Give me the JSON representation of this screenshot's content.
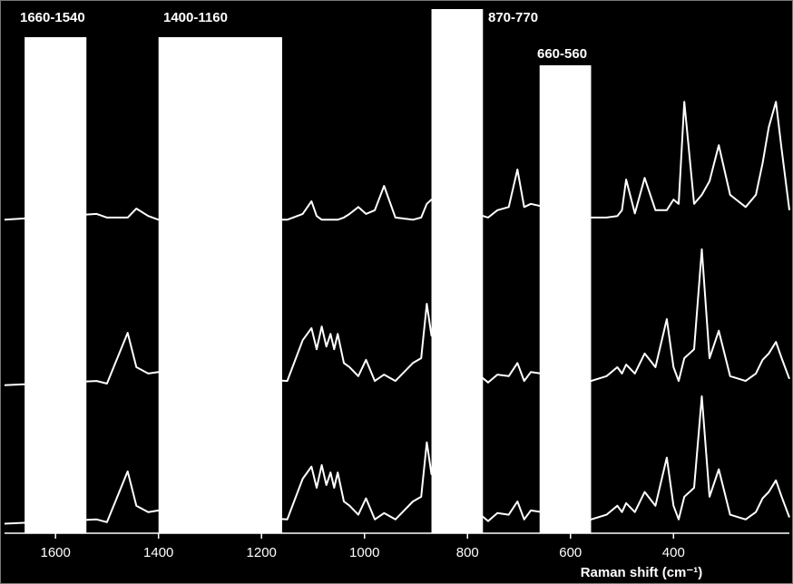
{
  "chart_data": {
    "type": "line",
    "xlabel": "Raman shift (cm⁻¹)",
    "xlim": [
      1699,
      175
    ],
    "xticks": [
      1600,
      1400,
      1200,
      1000,
      800,
      600,
      400
    ],
    "ylim": [
      0,
      100
    ],
    "x": [
      1699,
      1520,
      1500,
      1460,
      1443,
      1420,
      1400,
      1150,
      1120,
      1103,
      1093,
      1083,
      1074,
      1066,
      1059,
      1052,
      1040,
      1029,
      1012,
      997,
      980,
      962,
      940,
      906,
      890,
      879,
      870,
      760,
      742,
      720,
      703,
      690,
      677,
      560,
      530,
      509,
      500,
      492,
      475,
      456,
      435,
      413,
      400,
      390,
      379,
      360,
      345,
      330,
      312,
      290,
      260,
      240,
      227,
      215,
      201,
      190,
      175
    ],
    "series": [
      {
        "color": "#ffffff",
        "values": [
          59.3,
          60.4,
          59.7,
          59.7,
          61.4,
          60.0,
          59.3,
          59.3,
          60.4,
          62.8,
          60.0,
          59.3,
          59.3,
          59.3,
          59.3,
          59.3,
          59.7,
          60.4,
          61.7,
          60.4,
          61.1,
          65.7,
          59.7,
          59.3,
          59.7,
          62.3,
          63.1,
          59.7,
          61.1,
          61.7,
          68.8,
          61.7,
          62.3,
          59.7,
          59.7,
          60.0,
          61.1,
          66.9,
          60.5,
          67.2,
          61.1,
          61.1,
          63.1,
          62.3,
          81.6,
          62.3,
          64.0,
          66.6,
          73.4,
          64.0,
          61.7,
          64.0,
          70.0,
          76.8,
          81.6,
          72.6,
          61.1
        ]
      },
      {
        "color": "#ffffff",
        "values": [
          28.0,
          28.8,
          28.3,
          37.9,
          31.4,
          30.2,
          30.5,
          28.8,
          36.5,
          38.8,
          34.8,
          39.1,
          35.3,
          37.7,
          34.8,
          37.7,
          32.2,
          31.4,
          29.7,
          32.8,
          28.8,
          30.0,
          28.8,
          32.2,
          33.1,
          43.4,
          37.4,
          28.5,
          30.0,
          29.7,
          32.2,
          28.8,
          30.5,
          28.8,
          29.7,
          31.4,
          30.2,
          31.9,
          30.2,
          34.0,
          31.4,
          40.5,
          31.4,
          28.8,
          33.1,
          34.8,
          53.7,
          33.1,
          38.3,
          29.7,
          28.8,
          30.2,
          32.8,
          34.0,
          36.2,
          33.1,
          29.2
        ]
      },
      {
        "color": "#ffffff",
        "values": [
          1.8,
          2.6,
          2.1,
          11.7,
          5.2,
          4.0,
          4.3,
          2.6,
          10.3,
          12.6,
          8.6,
          12.9,
          9.1,
          11.5,
          8.6,
          11.5,
          6.0,
          5.2,
          3.5,
          6.6,
          2.6,
          3.8,
          2.6,
          6.0,
          6.9,
          17.2,
          11.2,
          2.3,
          3.8,
          3.5,
          6.0,
          2.6,
          4.3,
          2.6,
          3.5,
          5.2,
          4.0,
          5.7,
          4.0,
          7.8,
          5.2,
          14.3,
          5.2,
          2.6,
          6.9,
          8.6,
          25.9,
          6.9,
          12.1,
          3.5,
          2.6,
          4.0,
          6.6,
          7.8,
          10.0,
          6.9,
          3.0
        ]
      }
    ],
    "regions": [
      {
        "label": "1660-1540",
        "from": 1660,
        "to": 1540
      },
      {
        "label": "1400-1160",
        "from": 1400,
        "to": 1160
      },
      {
        "label": "870-770",
        "from": 870,
        "to": 770
      },
      {
        "label": "660-560",
        "from": 660,
        "to": 560
      }
    ]
  }
}
